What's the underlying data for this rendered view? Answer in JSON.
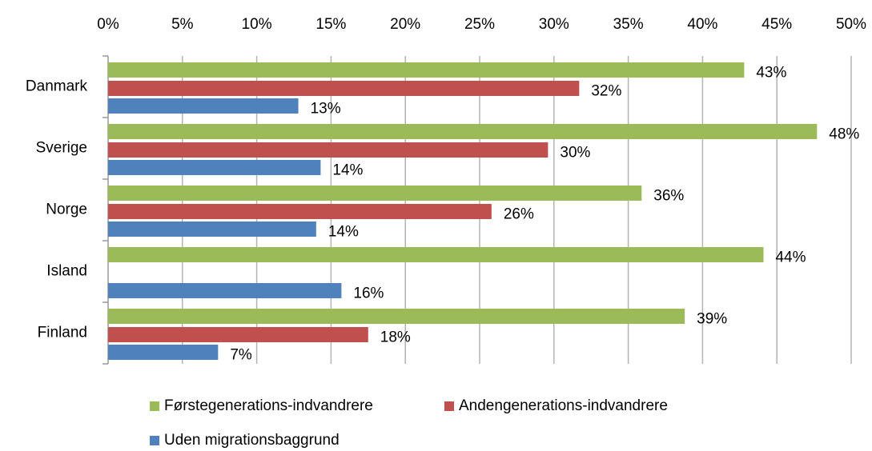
{
  "chart_data": {
    "type": "bar",
    "orientation": "horizontal",
    "categories": [
      "Danmark",
      "Sverige",
      "Norge",
      "Island",
      "Finland"
    ],
    "series": [
      {
        "name": "Førstegenerations-indvandrere",
        "color": "#9bbb59",
        "values": [
          42.8,
          47.7,
          35.9,
          44.1,
          38.8
        ],
        "value_labels": [
          "43%",
          "48%",
          "36%",
          "44%",
          "39%"
        ]
      },
      {
        "name": "Andengenerations-indvandrere",
        "color": "#c0504d",
        "values": [
          31.7,
          29.6,
          25.8,
          null,
          17.5
        ],
        "value_labels": [
          "32%",
          "30%",
          "26%",
          null,
          "18%"
        ]
      },
      {
        "name": "Uden migrationsbaggrund",
        "color": "#4f81bd",
        "values": [
          12.8,
          14.3,
          14.0,
          15.7,
          7.4
        ],
        "value_labels": [
          "13%",
          "14%",
          "14%",
          "16%",
          "7%"
        ]
      }
    ],
    "xlim": [
      0,
      50
    ],
    "xticks": [
      {
        "value": 0,
        "label": "0%"
      },
      {
        "value": 5,
        "label": "5%"
      },
      {
        "value": 10,
        "label": "10%"
      },
      {
        "value": 15,
        "label": "15%"
      },
      {
        "value": 20,
        "label": "20%"
      },
      {
        "value": 25,
        "label": "25%"
      },
      {
        "value": 30,
        "label": "30%"
      },
      {
        "value": 35,
        "label": "35%"
      },
      {
        "value": 40,
        "label": "40%"
      },
      {
        "value": 45,
        "label": "45%"
      },
      {
        "value": 50,
        "label": "50%"
      }
    ],
    "grid": true,
    "legend": "bottom"
  }
}
